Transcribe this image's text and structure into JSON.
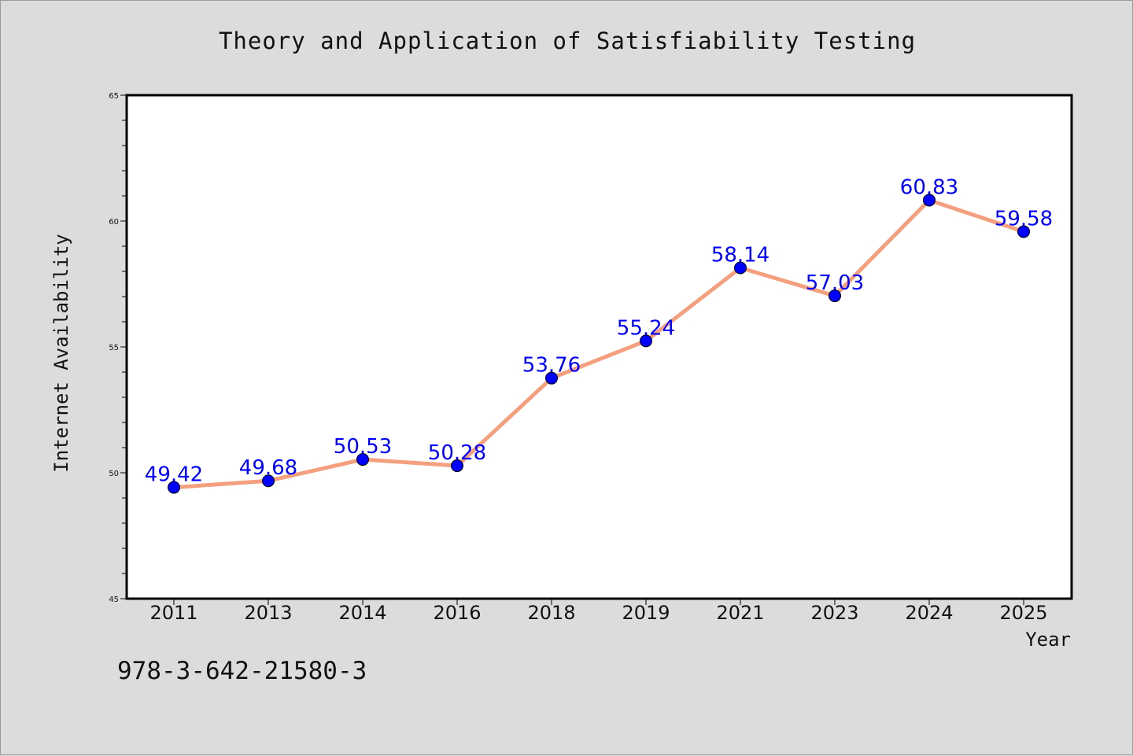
{
  "isbn_text": "978-3-642-21580-3",
  "chart_data": {
    "type": "line",
    "title": "Theory and Application of Satisfiability Testing",
    "xlabel": "Year",
    "ylabel": "Internet Availability",
    "categories": [
      "2011",
      "2013",
      "2014",
      "2016",
      "2018",
      "2019",
      "2021",
      "2023",
      "2024",
      "2025"
    ],
    "series": [
      {
        "values": [
          49.42,
          49.68,
          50.53,
          50.28,
          53.76,
          55.24,
          58.14,
          57.03,
          60.83,
          59.58
        ],
        "data_labels": [
          "49.42",
          "49.68",
          "50.53",
          "50.28",
          "53.76",
          "55.24",
          "58.14",
          "57.03",
          "60.83",
          "59.58"
        ],
        "line_color": "#f4a07f",
        "marker_color": "#0000ff"
      }
    ],
    "ylim": [
      45,
      65
    ],
    "yticks": [
      "45",
      "50",
      "55",
      "60",
      "65"
    ],
    "grid": false,
    "legend": "none"
  }
}
